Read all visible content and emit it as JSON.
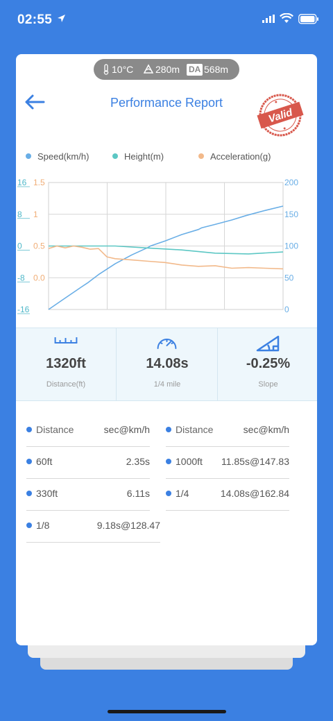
{
  "status": {
    "time": "02:55"
  },
  "conditions": {
    "temperature": "10°C",
    "altitude": "280m",
    "da_label": "DA",
    "density_altitude": "568m"
  },
  "header": {
    "title": "Performance Report",
    "stamp_text": "Valid"
  },
  "chart_data": {
    "type": "line",
    "legend": [
      {
        "name": "Speed(km/h)",
        "color": "#69aee6"
      },
      {
        "name": "Height(m)",
        "color": "#5cc7c4"
      },
      {
        "name": "Acceleration(g)",
        "color": "#f2b98a"
      }
    ],
    "axes": {
      "height_ticks": [
        "16",
        "8",
        "0",
        "-8",
        "-16"
      ],
      "acceleration_ticks": [
        "1.5",
        "1",
        "0.5",
        "0.0"
      ],
      "speed_ticks": [
        "200",
        "150",
        "100",
        "50",
        "0"
      ]
    },
    "x_range": [
      0,
      14.08
    ],
    "grid": true,
    "series": [
      {
        "name": "Speed(km/h)",
        "x": [
          0,
          1,
          2,
          2.35,
          3,
          4,
          5,
          6,
          6.11,
          7,
          8,
          9,
          9.18,
          10,
          11,
          11.85,
          12,
          13,
          14.08
        ],
        "y": [
          0,
          18,
          36,
          42,
          55,
          72,
          86,
          98,
          100,
          108,
          118,
          126,
          128.47,
          134,
          141,
          147.83,
          149,
          156,
          162.84
        ]
      },
      {
        "name": "Height(m)",
        "x": [
          0,
          2,
          4,
          6,
          8,
          10,
          12,
          14.08
        ],
        "y": [
          0,
          0,
          0,
          -0.5,
          -1,
          -1.8,
          -2,
          -1.5
        ]
      },
      {
        "name": "Acceleration(g)",
        "x": [
          0,
          0.5,
          1,
          1.5,
          2,
          2.5,
          3,
          3.5,
          4,
          5,
          6,
          7,
          8,
          9,
          10,
          11,
          12,
          13,
          14.08
        ],
        "y": [
          0.46,
          0.5,
          0.47,
          0.5,
          0.48,
          0.45,
          0.46,
          0.33,
          0.3,
          0.28,
          0.26,
          0.24,
          0.2,
          0.18,
          0.19,
          0.15,
          0.16,
          0.15,
          0.14
        ]
      }
    ]
  },
  "stats": [
    {
      "value": "1320ft",
      "label": "Distance(ft)",
      "icon": "ruler-icon"
    },
    {
      "value": "14.08s",
      "label": "1/4 mile",
      "icon": "speedometer-icon"
    },
    {
      "value": "-0.25%",
      "label": "Slope",
      "icon": "slope-icon"
    }
  ],
  "results": {
    "headers": {
      "left_key": "Distance",
      "left_value": "sec@km/h",
      "right_key": "Distance",
      "right_value": "sec@km/h"
    },
    "rows": [
      {
        "key": "60ft",
        "value": "2.35s"
      },
      {
        "key": "1000ft",
        "value": "11.85s@147.83"
      },
      {
        "key": "330ft",
        "value": "6.11s"
      },
      {
        "key": "1/4",
        "value": "14.08s@162.84"
      },
      {
        "key": "1/8",
        "value": "9.18s@128.47"
      }
    ]
  }
}
